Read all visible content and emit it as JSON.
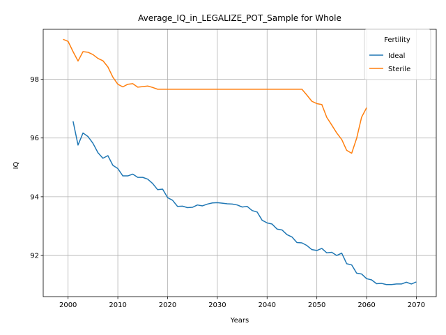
{
  "chart_data": {
    "type": "line",
    "title": "Average_IQ_in_LEGALIZE_POT_Sample for Whole",
    "xlabel": "Years",
    "ylabel": "IQ",
    "xlim": [
      1995,
      2074
    ],
    "ylim": [
      90.6,
      99.7
    ],
    "xticks": [
      2000,
      2010,
      2020,
      2030,
      2040,
      2050,
      2060,
      2070
    ],
    "yticks": [
      92,
      94,
      96,
      98
    ],
    "grid": true,
    "legend": {
      "title": "Fertility",
      "placement": "top-right"
    },
    "series": [
      {
        "name": "Ideal",
        "color": "#1f77b4",
        "x": [
          2001,
          2002,
          2003,
          2004,
          2005,
          2006,
          2007,
          2008,
          2009,
          2010,
          2011,
          2012,
          2013,
          2014,
          2015,
          2016,
          2017,
          2018,
          2019,
          2020,
          2021,
          2022,
          2023,
          2024,
          2025,
          2026,
          2027,
          2028,
          2029,
          2030,
          2031,
          2032,
          2033,
          2034,
          2035,
          2036,
          2037,
          2038,
          2039,
          2040,
          2041,
          2042,
          2043,
          2044,
          2045,
          2046,
          2047,
          2048,
          2049,
          2050,
          2051,
          2052,
          2053,
          2054,
          2055,
          2056,
          2057,
          2058,
          2059,
          2060,
          2061,
          2062,
          2063,
          2064,
          2065,
          2066,
          2067,
          2068,
          2069,
          2070
        ],
        "values": [
          96.57,
          95.76,
          96.17,
          96.05,
          95.82,
          95.5,
          95.31,
          95.4,
          95.07,
          94.96,
          94.71,
          94.71,
          94.77,
          94.66,
          94.66,
          94.6,
          94.45,
          94.24,
          94.26,
          93.97,
          93.88,
          93.67,
          93.68,
          93.63,
          93.64,
          93.72,
          93.69,
          93.75,
          93.79,
          93.8,
          93.78,
          93.76,
          93.75,
          93.72,
          93.65,
          93.67,
          93.53,
          93.48,
          93.2,
          93.11,
          93.07,
          92.9,
          92.87,
          92.71,
          92.63,
          92.44,
          92.43,
          92.34,
          92.2,
          92.17,
          92.24,
          92.09,
          92.11,
          92.0,
          92.08,
          91.72,
          91.68,
          91.4,
          91.37,
          91.21,
          91.17,
          91.04,
          91.05,
          91.01,
          91.01,
          91.03,
          91.03,
          91.09,
          91.03,
          91.1
        ]
      },
      {
        "name": "Sterile",
        "color": "#ff7f0e",
        "x": [
          1999,
          2000,
          2001,
          2002,
          2003,
          2004,
          2005,
          2006,
          2007,
          2008,
          2009,
          2010,
          2011,
          2012,
          2013,
          2014,
          2015,
          2016,
          2017,
          2018,
          2019,
          2020,
          2021,
          2022,
          2023,
          2024,
          2025,
          2026,
          2027,
          2028,
          2029,
          2030,
          2031,
          2032,
          2033,
          2034,
          2035,
          2036,
          2037,
          2038,
          2039,
          2040,
          2041,
          2042,
          2043,
          2044,
          2045,
          2046,
          2047,
          2048,
          2049,
          2050,
          2051,
          2052,
          2053,
          2054,
          2055,
          2056,
          2057,
          2058,
          2059,
          2060
        ],
        "values": [
          99.36,
          99.29,
          98.94,
          98.62,
          98.94,
          98.92,
          98.84,
          98.71,
          98.63,
          98.42,
          98.07,
          97.83,
          97.74,
          97.83,
          97.85,
          97.73,
          97.75,
          97.77,
          97.72,
          97.66,
          97.66,
          97.66,
          97.66,
          97.66,
          97.66,
          97.66,
          97.66,
          97.66,
          97.66,
          97.66,
          97.66,
          97.66,
          97.66,
          97.66,
          97.66,
          97.66,
          97.66,
          97.66,
          97.66,
          97.66,
          97.66,
          97.66,
          97.66,
          97.66,
          97.66,
          97.66,
          97.66,
          97.66,
          97.66,
          97.46,
          97.25,
          97.17,
          97.14,
          96.7,
          96.44,
          96.17,
          95.95,
          95.58,
          95.48,
          95.99,
          96.71,
          97.03
        ]
      }
    ]
  }
}
